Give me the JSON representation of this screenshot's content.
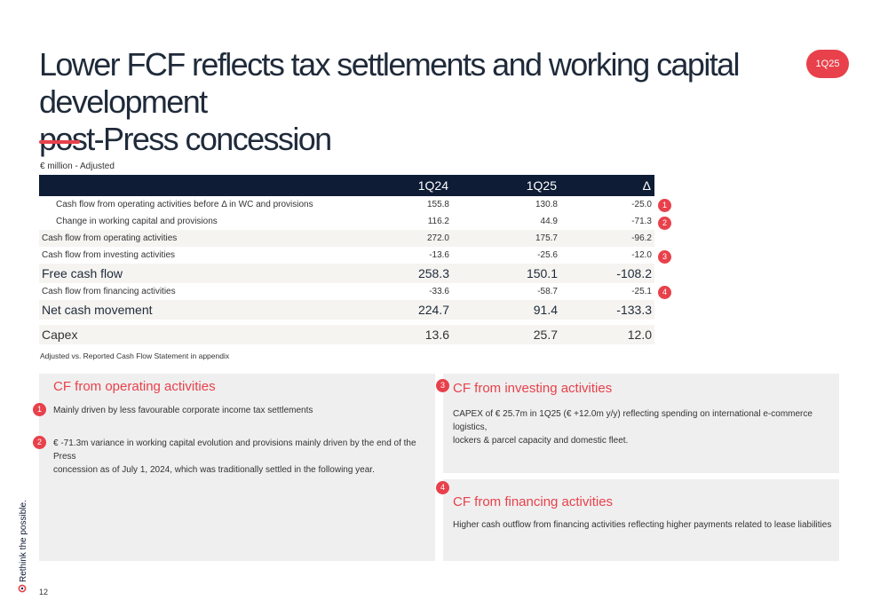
{
  "header": {
    "title_line1": "Lower FCF reflects tax settlements and working capital development",
    "title_line2": "post-Press concession",
    "badge": "1Q25"
  },
  "table": {
    "unit": "€ million - Adjusted",
    "columns": [
      "1Q24",
      "1Q25",
      "Δ"
    ],
    "rows": [
      {
        "label": "Cash flow from operating activities before Δ in WC and provisions",
        "q124": "155.8",
        "q125": "130.8",
        "delta": "-25.0",
        "marker": "1"
      },
      {
        "label": "Change in working capital and provisions",
        "q124": "116.2",
        "q125": "44.9",
        "delta": "-71.3",
        "marker": "2"
      },
      {
        "label": "Cash flow from operating activities",
        "q124": "272.0",
        "q125": "175.7",
        "delta": "-96.2",
        "marker": ""
      },
      {
        "label": "Cash flow from investing activities",
        "q124": "-13.6",
        "q125": "-25.6",
        "delta": "-12.0",
        "marker": "3"
      },
      {
        "label": "Free cash flow",
        "q124": "258.3",
        "q125": "150.1",
        "delta": "-108.2",
        "marker": ""
      },
      {
        "label": "Cash flow from financing activities",
        "q124": "-33.6",
        "q125": "-58.7",
        "delta": "-25.1",
        "marker": "4"
      },
      {
        "label": "Net cash movement",
        "q124": "224.7",
        "q125": "91.4",
        "delta": "-133.3",
        "marker": ""
      },
      {
        "label": "Capex",
        "q124": "13.6",
        "q125": "25.7",
        "delta": "12.0",
        "marker": ""
      }
    ],
    "footnote": "Adjusted vs. Reported Cash Flow Statement in appendix"
  },
  "panels": {
    "operating": {
      "title": "CF from operating activities",
      "point1_marker": "1",
      "point1": "Mainly driven by less favourable corporate income tax settlements",
      "point2_marker": "2",
      "point2_line1": "€ -71.3m variance in working capital evolution and provisions mainly driven by the end of the Press",
      "point2_line2": "concession as of July 1, 2024, which was traditionally settled in the following year."
    },
    "investing": {
      "marker": "3",
      "title": "CF from investing activities",
      "text_line1": "CAPEX of € 25.7m in 1Q25 (€ +12.0m y/y) reflecting spending on international e-commerce logistics,",
      "text_line2": "lockers & parcel capacity and domestic fleet."
    },
    "financing": {
      "marker": "4",
      "title": "CF from financing activities",
      "text": "Higher cash outflow from financing activities reflecting higher payments related to lease liabilities"
    }
  },
  "footer": {
    "brand": "Rethink the possible.",
    "page": "12",
    "accent_color": "#e8414b",
    "navy_color": "#0e1c36"
  }
}
